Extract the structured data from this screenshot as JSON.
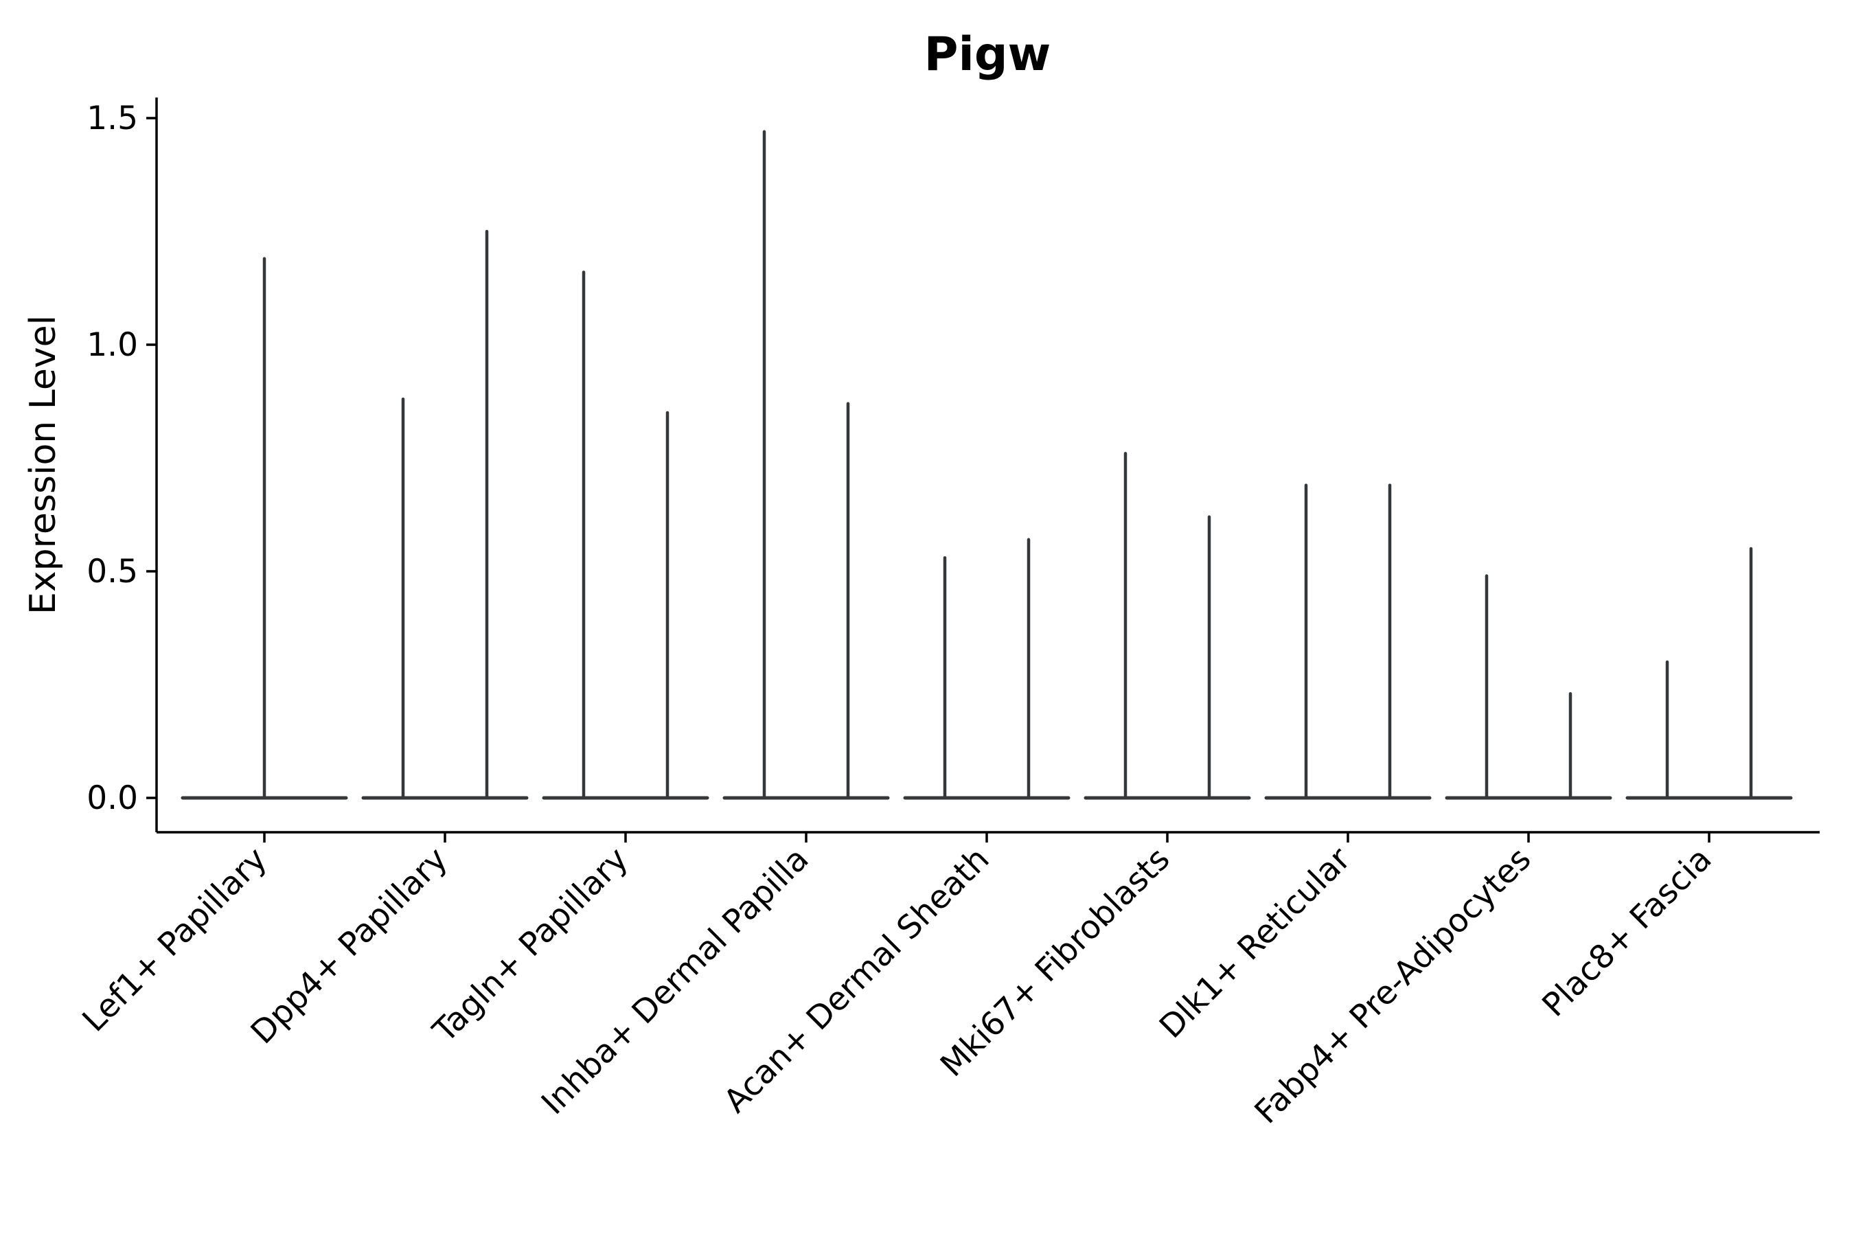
{
  "chart_data": {
    "type": "violin",
    "title": "Pigw",
    "ylabel": "Expression Level",
    "xlabel": "",
    "grid": false,
    "legend": null,
    "yticks": [
      {
        "label": "0.0",
        "value": 0.0
      },
      {
        "label": "0.5",
        "value": 0.5
      },
      {
        "label": "1.0",
        "value": 1.0
      },
      {
        "label": "1.5",
        "value": 1.5
      }
    ],
    "ylim": [
      -0.076,
      1.545
    ],
    "axis_color": "#000000",
    "violin_color": "#35383a",
    "description": "Needle-like violins: flat density base at expression 0 spanning each category, with thin spikes rising to the max expression value. Most categories contain two violins (left/right slots); the first contains one centered violin.",
    "categories": [
      {
        "label": "Lef1+ Papillary",
        "spikes": [
          {
            "slot": "center",
            "value": 1.19
          }
        ]
      },
      {
        "label": "Dpp4+ Papillary",
        "spikes": [
          {
            "slot": "left",
            "value": 0.88
          },
          {
            "slot": "right",
            "value": 1.25
          }
        ]
      },
      {
        "label": "Tagln+ Papillary",
        "spikes": [
          {
            "slot": "left",
            "value": 1.16
          },
          {
            "slot": "right",
            "value": 0.85
          }
        ]
      },
      {
        "label": "Inhba+ Dermal Papilla",
        "spikes": [
          {
            "slot": "left",
            "value": 1.47
          },
          {
            "slot": "right",
            "value": 0.87
          }
        ]
      },
      {
        "label": "Acan+ Dermal Sheath",
        "spikes": [
          {
            "slot": "left",
            "value": 0.53
          },
          {
            "slot": "right",
            "value": 0.57
          }
        ]
      },
      {
        "label": "Mki67+ Fibroblasts",
        "spikes": [
          {
            "slot": "left",
            "value": 0.76
          },
          {
            "slot": "right",
            "value": 0.62
          }
        ]
      },
      {
        "label": "Dlk1+ Reticular",
        "spikes": [
          {
            "slot": "left",
            "value": 0.69
          },
          {
            "slot": "right",
            "value": 0.69
          }
        ]
      },
      {
        "label": "Fabp4+ Pre-Adipocytes",
        "spikes": [
          {
            "slot": "left",
            "value": 0.49
          },
          {
            "slot": "right",
            "value": 0.23
          }
        ]
      },
      {
        "label": "Plac8+ Fascia",
        "spikes": [
          {
            "slot": "left",
            "value": 0.3
          },
          {
            "slot": "right",
            "value": 0.55
          }
        ]
      }
    ]
  }
}
